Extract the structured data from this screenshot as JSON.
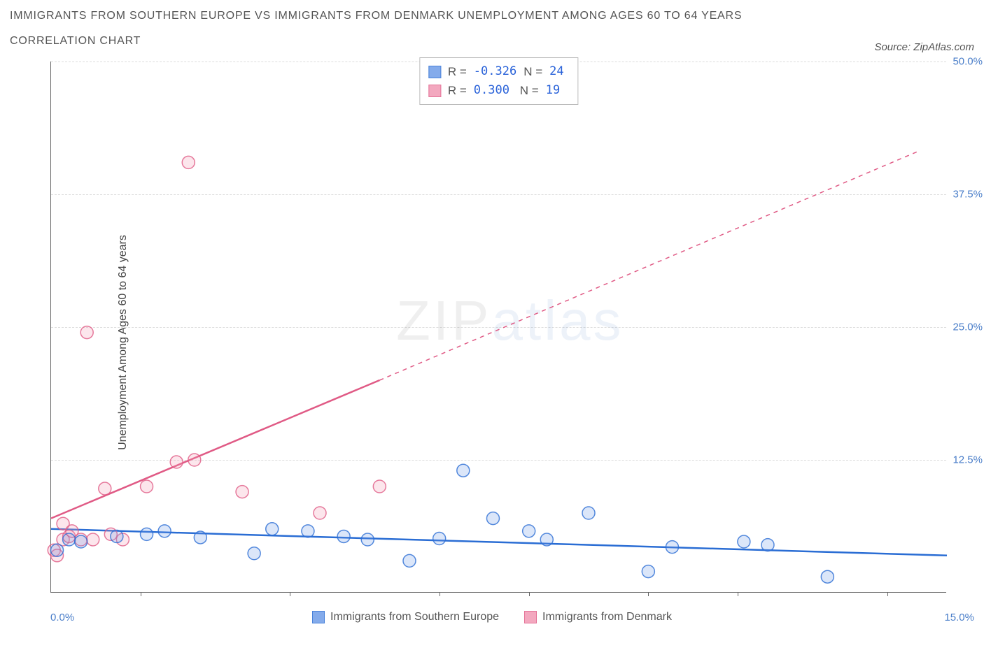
{
  "title_line1": "IMMIGRANTS FROM SOUTHERN EUROPE VS IMMIGRANTS FROM DENMARK UNEMPLOYMENT AMONG AGES 60 TO 64 YEARS",
  "title_line2": "CORRELATION CHART",
  "source_label": "Source: ZipAtlas.com",
  "ylabel": "Unemployment Among Ages 60 to 64 years",
  "watermark_zip": "ZIP",
  "watermark_atlas": "atlas",
  "colors": {
    "series_a_fill": "#6f9de8",
    "series_a_stroke": "#2a6dd4",
    "series_b_fill": "#f29ab5",
    "series_b_stroke": "#e05a85",
    "grid": "#dddddd",
    "axis": "#666666",
    "tick_text": "#4a7ec9",
    "stat_val": "#2962d9"
  },
  "series_a": {
    "label": "Immigrants from Southern Europe",
    "R": "-0.326",
    "N": "24",
    "reg_line": {
      "x1": 0.0,
      "y1": 6.0,
      "x2": 15.0,
      "y2": 3.5
    },
    "reg_dash": false,
    "points": [
      {
        "x": 0.1,
        "y": 4.0
      },
      {
        "x": 0.3,
        "y": 5.0
      },
      {
        "x": 0.5,
        "y": 4.8
      },
      {
        "x": 1.1,
        "y": 5.3
      },
      {
        "x": 1.6,
        "y": 5.5
      },
      {
        "x": 1.9,
        "y": 5.8
      },
      {
        "x": 2.5,
        "y": 5.2
      },
      {
        "x": 3.4,
        "y": 3.7
      },
      {
        "x": 3.7,
        "y": 6.0
      },
      {
        "x": 4.3,
        "y": 5.8
      },
      {
        "x": 4.9,
        "y": 5.3
      },
      {
        "x": 5.3,
        "y": 5.0
      },
      {
        "x": 6.0,
        "y": 3.0
      },
      {
        "x": 6.5,
        "y": 5.1
      },
      {
        "x": 6.9,
        "y": 11.5
      },
      {
        "x": 7.4,
        "y": 7.0
      },
      {
        "x": 8.0,
        "y": 5.8
      },
      {
        "x": 8.3,
        "y": 5.0
      },
      {
        "x": 9.0,
        "y": 7.5
      },
      {
        "x": 10.0,
        "y": 2.0
      },
      {
        "x": 10.4,
        "y": 4.3
      },
      {
        "x": 11.6,
        "y": 4.8
      },
      {
        "x": 12.0,
        "y": 4.5
      },
      {
        "x": 13.0,
        "y": 1.5
      }
    ]
  },
  "series_b": {
    "label": "Immigrants from Denmark",
    "R": "0.300",
    "N": "19",
    "reg_line_solid": {
      "x1": 0.0,
      "y1": 7.0,
      "x2": 5.5,
      "y2": 20.0
    },
    "reg_line_dash": {
      "x1": 5.5,
      "y1": 20.0,
      "x2": 14.5,
      "y2": 41.5
    },
    "points": [
      {
        "x": 0.05,
        "y": 4.0
      },
      {
        "x": 0.1,
        "y": 3.5
      },
      {
        "x": 0.2,
        "y": 6.5
      },
      {
        "x": 0.2,
        "y": 5.0
      },
      {
        "x": 0.3,
        "y": 5.3
      },
      {
        "x": 0.35,
        "y": 5.8
      },
      {
        "x": 0.5,
        "y": 5.0
      },
      {
        "x": 0.6,
        "y": 24.5
      },
      {
        "x": 0.7,
        "y": 5.0
      },
      {
        "x": 0.9,
        "y": 9.8
      },
      {
        "x": 1.0,
        "y": 5.5
      },
      {
        "x": 1.2,
        "y": 5.0
      },
      {
        "x": 1.6,
        "y": 10.0
      },
      {
        "x": 2.1,
        "y": 12.3
      },
      {
        "x": 2.3,
        "y": 40.5
      },
      {
        "x": 2.4,
        "y": 12.5
      },
      {
        "x": 3.2,
        "y": 9.5
      },
      {
        "x": 4.5,
        "y": 7.5
      },
      {
        "x": 5.5,
        "y": 10.0
      }
    ]
  },
  "axes": {
    "xmin": 0.0,
    "xmax": 15.0,
    "ymin": 0.0,
    "ymax": 50.0,
    "xticks": [
      1.5,
      4.0,
      6.5,
      8.0,
      10.0,
      11.5,
      14.0
    ],
    "yticks": [
      {
        "v": 12.5,
        "label": "12.5%"
      },
      {
        "v": 25.0,
        "label": "25.0%"
      },
      {
        "v": 37.5,
        "label": "37.5%"
      },
      {
        "v": 50.0,
        "label": "50.0%"
      }
    ],
    "xmin_label": "0.0%",
    "xmax_label": "15.0%"
  },
  "marker_radius": 9,
  "line_width": 2.5,
  "stats_box": {
    "r_label": "R =",
    "n_label": "N ="
  }
}
